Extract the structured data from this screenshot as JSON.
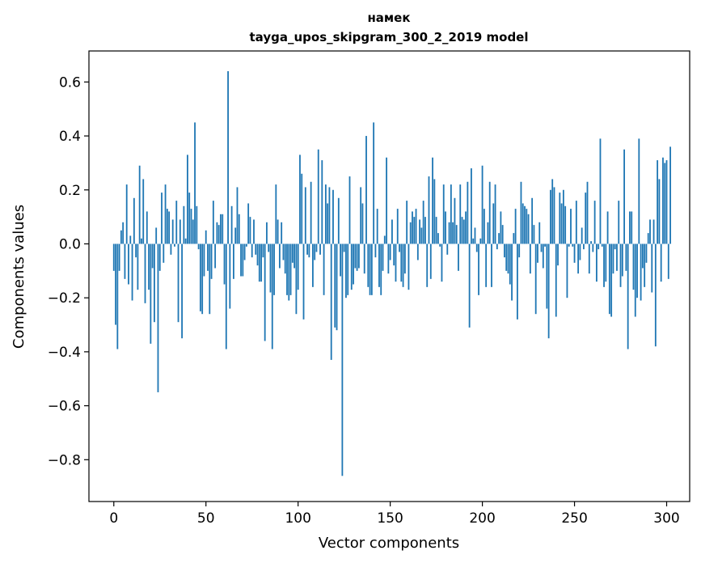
{
  "chart_data": {
    "type": "bar",
    "title": "намек",
    "subtitle": "tayga_upos_skipgram_300_2_2019 model",
    "xlabel": "Vector components",
    "ylabel": "Components values",
    "xlim": [
      -13.5,
      312.5
    ],
    "ylim": [
      -0.955,
      0.715
    ],
    "xticks": [
      0,
      50,
      100,
      150,
      200,
      250,
      300
    ],
    "xtick_labels": [
      "0",
      "50",
      "100",
      "150",
      "200",
      "250",
      "300"
    ],
    "yticks": [
      -0.8,
      -0.6,
      -0.4,
      -0.2,
      0.0,
      0.2,
      0.4,
      0.6
    ],
    "ytick_labels": [
      "−0.8",
      "−0.6",
      "−0.4",
      "−0.2",
      "0.0",
      "0.2",
      "0.4",
      "0.6"
    ],
    "grid": false,
    "color": "#1f77b4",
    "values": [
      -0.1,
      -0.3,
      -0.39,
      -0.1,
      0.05,
      0.08,
      -0.13,
      0.22,
      -0.15,
      0.03,
      -0.21,
      0.17,
      -0.05,
      -0.17,
      0.29,
      0.02,
      0.24,
      -0.22,
      0.12,
      -0.17,
      -0.37,
      -0.09,
      -0.29,
      0.06,
      -0.55,
      -0.1,
      0.19,
      -0.07,
      0.22,
      0.13,
      0.12,
      -0.04,
      0.09,
      -0.01,
      0.16,
      -0.29,
      0.09,
      -0.35,
      0.14,
      0.02,
      0.33,
      0.19,
      0.13,
      0.09,
      0.45,
      0.14,
      -0.02,
      -0.25,
      -0.26,
      -0.12,
      0.05,
      -0.1,
      -0.26,
      -0.13,
      0.16,
      -0.09,
      0.08,
      0.07,
      0.11,
      0.11,
      -0.15,
      -0.39,
      0.64,
      -0.24,
      0.14,
      -0.13,
      0.06,
      0.21,
      0.11,
      -0.12,
      -0.12,
      -0.06,
      -0.01,
      0.15,
      0.1,
      -0.05,
      0.09,
      -0.04,
      -0.08,
      -0.14,
      -0.14,
      -0.05,
      -0.36,
      0.08,
      -0.03,
      -0.18,
      -0.39,
      -0.19,
      0.22,
      0.09,
      -0.09,
      0.08,
      -0.06,
      -0.11,
      -0.19,
      -0.21,
      -0.19,
      -0.07,
      -0.09,
      -0.26,
      -0.17,
      0.33,
      0.26,
      -0.28,
      0.21,
      -0.04,
      -0.05,
      0.23,
      -0.16,
      -0.06,
      -0.03,
      0.35,
      -0.04,
      0.31,
      -0.19,
      0.22,
      0.15,
      0.21,
      -0.43,
      0.2,
      -0.31,
      -0.32,
      0.17,
      -0.12,
      -0.86,
      -0.03,
      -0.2,
      -0.19,
      0.25,
      -0.17,
      -0.15,
      -0.09,
      -0.1,
      -0.09,
      0.21,
      0.15,
      -0.11,
      0.4,
      -0.16,
      -0.19,
      -0.19,
      0.45,
      -0.05,
      0.13,
      -0.16,
      -0.19,
      -0.1,
      0.03,
      0.32,
      -0.11,
      -0.06,
      0.09,
      -0.08,
      -0.14,
      0.13,
      -0.03,
      -0.14,
      -0.16,
      -0.11,
      0.16,
      -0.17,
      0.08,
      0.12,
      0.1,
      0.13,
      -0.06,
      0.09,
      0.06,
      0.16,
      0.1,
      -0.16,
      0.25,
      -0.13,
      0.32,
      0.24,
      0.1,
      0.04,
      -0.01,
      -0.14,
      0.22,
      0.12,
      -0.04,
      0.08,
      0.22,
      0.08,
      0.17,
      0.07,
      -0.1,
      0.22,
      0.1,
      0.09,
      0.12,
      0.23,
      -0.31,
      0.28,
      0.02,
      0.06,
      -0.03,
      -0.19,
      0.02,
      0.29,
      0.13,
      -0.16,
      0.08,
      0.23,
      -0.16,
      0.15,
      0.22,
      -0.02,
      0.04,
      0.12,
      0.07,
      -0.05,
      -0.1,
      -0.11,
      -0.15,
      -0.21,
      0.04,
      0.13,
      -0.28,
      -0.05,
      0.23,
      0.15,
      0.14,
      0.13,
      0.11,
      -0.11,
      0.17,
      0.07,
      -0.26,
      -0.07,
      0.08,
      -0.03,
      -0.09,
      -0.01,
      -0.24,
      -0.35,
      0.2,
      0.24,
      0.21,
      -0.27,
      -0.08,
      0.19,
      0.15,
      0.2,
      0.14,
      -0.2,
      -0.01,
      0.13,
      -0.01,
      -0.07,
      0.16,
      -0.11,
      -0.06,
      0.06,
      -0.02,
      0.19,
      0.23,
      -0.11,
      0.01,
      -0.03,
      0.16,
      -0.14,
      -0.02,
      0.39,
      -0.01,
      -0.16,
      -0.14,
      0.12,
      -0.26,
      -0.27,
      -0.11,
      -0.02,
      -0.1,
      0.16,
      -0.16,
      -0.12,
      0.35,
      -0.1,
      -0.39,
      0.12,
      0.12,
      -0.17,
      -0.27,
      -0.2,
      0.39,
      -0.21,
      -0.09,
      -0.16,
      -0.07,
      0.04,
      0.09,
      -0.18,
      0.09,
      -0.38,
      0.31,
      0.24,
      -0.14,
      0.32,
      0.3,
      0.31,
      -0.13,
      0.36,
      0.0
    ]
  }
}
